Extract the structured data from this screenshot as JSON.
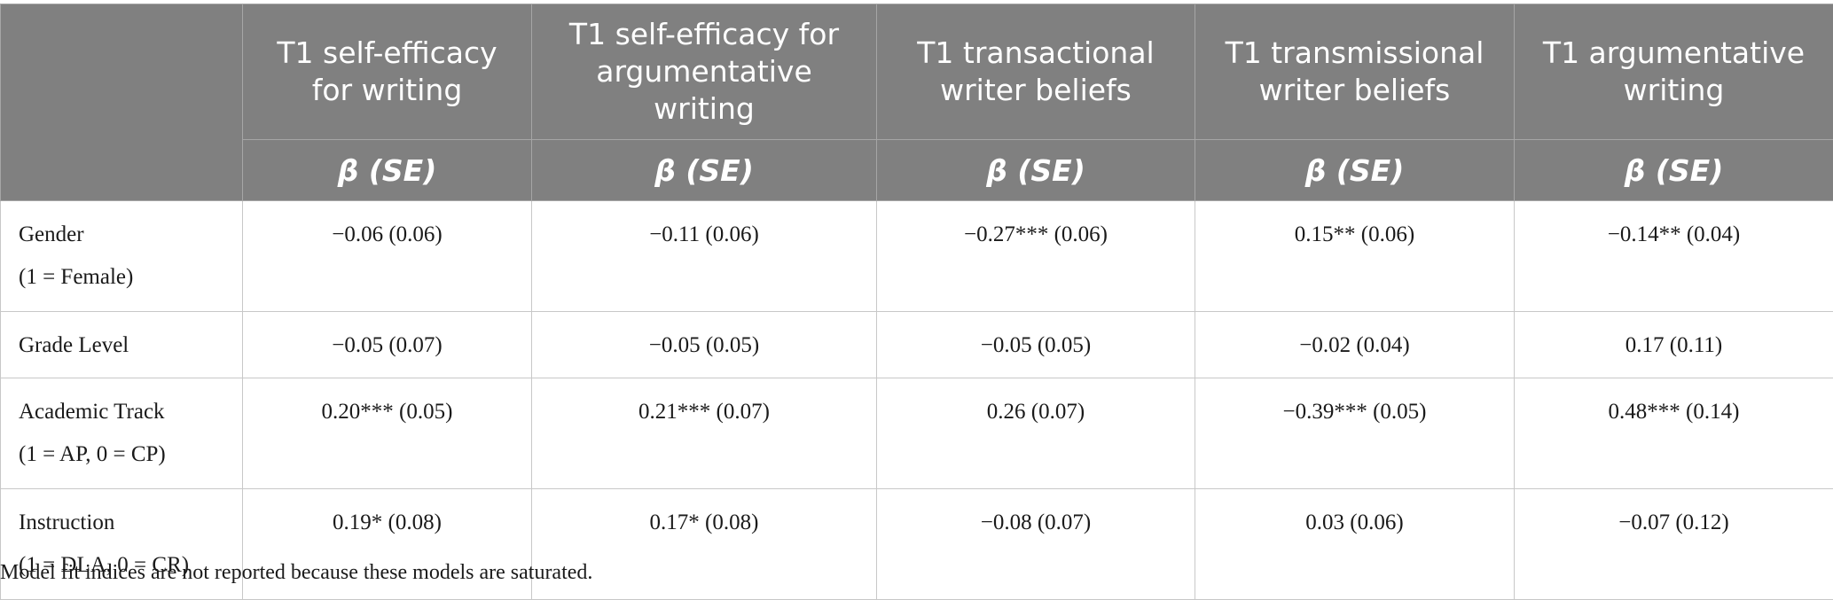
{
  "header": {
    "columns": [
      "T1 self-efficacy for writing",
      "T1 self-efficacy for argumentative writing",
      "T1 transactional writer beliefs",
      "T1 transmissional writer beliefs",
      "T1 argumentative writing"
    ],
    "sub_label": "β (SE)"
  },
  "rows": [
    {
      "label": "Gender",
      "sublabel": "(1 = Female)",
      "values": [
        "−0.06 (0.06)",
        "−0.11 (0.06)",
        "−0.27*** (0.06)",
        "0.15** (0.06)",
        "−0.14** (0.04)"
      ]
    },
    {
      "label": "Grade Level",
      "sublabel": "",
      "values": [
        "−0.05 (0.07)",
        "−0.05 (0.05)",
        "−0.05 (0.05)",
        "−0.02 (0.04)",
        "0.17 (0.11)"
      ]
    },
    {
      "label": "Academic Track",
      "sublabel": "(1 = AP, 0 = CP)",
      "values": [
        "0.20*** (0.05)",
        "0.21*** (0.07)",
        "0.26 (0.07)",
        "−0.39*** (0.05)",
        "0.48*** (0.14)"
      ]
    },
    {
      "label": "Instruction",
      "sublabel": "(1 = DLA, 0 = CR)",
      "values": [
        "0.19* (0.08)",
        "0.17* (0.08)",
        "−0.08 (0.07)",
        "0.03 (0.06)",
        "−0.07 (0.12)"
      ]
    }
  ],
  "footnote": "Model fit indices are not reported because these models are saturated."
}
